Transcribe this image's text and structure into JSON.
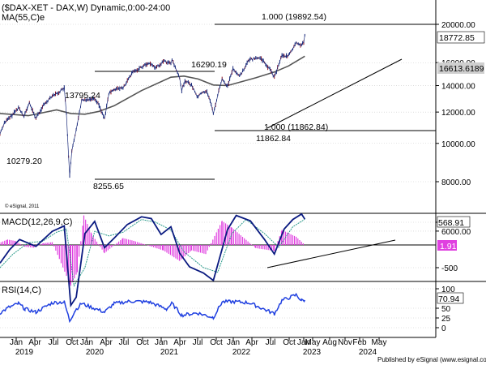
{
  "chart_data": [
    {
      "type": "line",
      "panel": "price",
      "title": "($DAX-XET - DAX,W) Dynamic,0:00-24:00",
      "indicator_label": "MA(55,C)e",
      "copyright": "© eSignal, 2011",
      "y_ticks": [
        "20000.00",
        "16000.00",
        "14000.00",
        "12000.00",
        "10000.00",
        "8000.00",
        "6000.00"
      ],
      "last_price_tag": "18772.85",
      "ma_tag": "16613.6189",
      "annotations": [
        "10279.20",
        "13795.24",
        "16290.19",
        "8255.65",
        "11862.84"
      ],
      "fib_labels": [
        "1.000 (19892.54)",
        "1.000 (11862.84)"
      ],
      "price_series": [
        [
          "2018-12-28",
          10559
        ],
        [
          "2019-01-25",
          11282
        ],
        [
          "2019-03-01",
          11602
        ],
        [
          "2019-04-26",
          12315
        ],
        [
          "2019-05-31",
          11726
        ],
        [
          "2019-07-05",
          12630
        ],
        [
          "2019-08-16",
          11560
        ],
        [
          "2019-09-27",
          12380
        ],
        [
          "2019-11-29",
          13236
        ],
        [
          "2019-12-27",
          13337
        ],
        [
          "2020-01-17",
          13526
        ],
        [
          "2020-02-14",
          13795
        ],
        [
          "2020-02-28",
          11890
        ],
        [
          "2020-03-13",
          9232
        ],
        [
          "2020-03-20",
          8255
        ],
        [
          "2020-04-03",
          9525
        ],
        [
          "2020-05-01",
          10861
        ],
        [
          "2020-06-05",
          12848
        ],
        [
          "2020-07-17",
          12919
        ],
        [
          "2020-08-28",
          13033
        ],
        [
          "2020-09-25",
          12469
        ],
        [
          "2020-10-30",
          11556
        ],
        [
          "2020-11-27",
          13335
        ],
        [
          "2020-12-31",
          13719
        ],
        [
          "2021-02-26",
          13786
        ],
        [
          "2021-04-30",
          15136
        ],
        [
          "2021-06-25",
          15607
        ],
        [
          "2021-08-13",
          15977
        ],
        [
          "2021-09-24",
          15532
        ],
        [
          "2021-11-19",
          16160
        ],
        [
          "2021-12-31",
          15884
        ],
        [
          "2022-01-07",
          16290
        ],
        [
          "2022-02-25",
          14567
        ],
        [
          "2022-03-11",
          13628
        ],
        [
          "2022-03-31",
          14414
        ],
        [
          "2022-05-13",
          14027
        ],
        [
          "2022-06-17",
          13126
        ],
        [
          "2022-07-29",
          13484
        ],
        [
          "2022-08-19",
          13544
        ],
        [
          "2022-09-23",
          12284
        ],
        [
          "2022-09-30",
          11862
        ],
        [
          "2022-10-28",
          13243
        ],
        [
          "2022-11-25",
          14541
        ],
        [
          "2022-12-30",
          13924
        ],
        [
          "2023-02-03",
          15476
        ],
        [
          "2023-03-17",
          14768
        ],
        [
          "2023-05-19",
          16275
        ],
        [
          "2023-07-28",
          16469
        ],
        [
          "2023-09-29",
          15386
        ],
        [
          "2023-10-27",
          14687
        ],
        [
          "2023-12-15",
          16751
        ],
        [
          "2024-01-19",
          16555
        ],
        [
          "2024-02-16",
          17117
        ],
        [
          "2024-03-15",
          17936
        ],
        [
          "2024-04-19",
          17737
        ],
        [
          "2024-05-03",
          18001
        ],
        [
          "2024-05-10",
          18772
        ]
      ],
      "ma_series": [
        [
          "2018-12-28",
          11900
        ],
        [
          "2019-06-28",
          11750
        ],
        [
          "2019-12-27",
          12150
        ],
        [
          "2020-03-27",
          11900
        ],
        [
          "2020-06-26",
          11850
        ],
        [
          "2020-09-25",
          12050
        ],
        [
          "2020-12-31",
          12450
        ],
        [
          "2021-06-25",
          13600
        ],
        [
          "2021-12-31",
          14700
        ],
        [
          "2022-03-25",
          14800
        ],
        [
          "2022-06-24",
          14550
        ],
        [
          "2022-09-30",
          14050
        ],
        [
          "2022-12-30",
          14000
        ],
        [
          "2023-06-30",
          14650
        ],
        [
          "2023-10-27",
          15150
        ],
        [
          "2024-01-26",
          15700
        ],
        [
          "2024-05-10",
          16613
        ]
      ]
    },
    {
      "type": "line",
      "panel": "macd",
      "indicator_label": "MACD(12,26,9,C)",
      "y_ticks": [
        "500",
        "-500"
      ],
      "macd_tag": "568.91",
      "hist_tag": "1.91",
      "macd_series": [
        [
          "2018-12-28",
          -400
        ],
        [
          "2019-03-01",
          -100
        ],
        [
          "2019-05-03",
          120
        ],
        [
          "2019-08-16",
          -30
        ],
        [
          "2019-11-29",
          300
        ],
        [
          "2020-02-14",
          420
        ],
        [
          "2020-03-27",
          -1330
        ],
        [
          "2020-05-01",
          -1150
        ],
        [
          "2020-06-26",
          250
        ],
        [
          "2020-08-28",
          520
        ],
        [
          "2020-10-30",
          -60
        ],
        [
          "2020-12-31",
          150
        ],
        [
          "2021-03-26",
          450
        ],
        [
          "2021-06-25",
          620
        ],
        [
          "2021-08-27",
          580
        ],
        [
          "2021-10-29",
          230
        ],
        [
          "2021-12-31",
          400
        ],
        [
          "2022-02-25",
          -180
        ],
        [
          "2022-04-29",
          -480
        ],
        [
          "2022-07-29",
          -620
        ],
        [
          "2022-09-30",
          -780
        ],
        [
          "2022-12-30",
          340
        ],
        [
          "2023-02-24",
          650
        ],
        [
          "2023-05-26",
          530
        ],
        [
          "2023-08-25",
          120
        ],
        [
          "2023-10-27",
          -200
        ],
        [
          "2023-12-29",
          350
        ],
        [
          "2024-02-23",
          560
        ],
        [
          "2024-04-19",
          680
        ],
        [
          "2024-05-10",
          568
        ]
      ],
      "signal_series": [
        [
          "2018-12-28",
          -500
        ],
        [
          "2019-03-22",
          -200
        ],
        [
          "2019-06-28",
          50
        ],
        [
          "2019-09-27",
          80
        ],
        [
          "2019-12-27",
          280
        ],
        [
          "2020-02-28",
          350
        ],
        [
          "2020-04-17",
          -900
        ],
        [
          "2020-06-26",
          -500
        ],
        [
          "2020-08-28",
          300
        ],
        [
          "2020-11-27",
          200
        ],
        [
          "2021-02-26",
          280
        ],
        [
          "2021-06-25",
          560
        ],
        [
          "2021-09-24",
          500
        ],
        [
          "2021-12-31",
          330
        ],
        [
          "2022-03-25",
          -150
        ],
        [
          "2022-07-29",
          -500
        ],
        [
          "2022-10-28",
          -600
        ],
        [
          "2023-01-27",
          250
        ],
        [
          "2023-04-28",
          560
        ],
        [
          "2023-08-25",
          250
        ],
        [
          "2023-11-24",
          -50
        ],
        [
          "2024-02-23",
          400
        ],
        [
          "2024-05-10",
          566
        ]
      ],
      "histogram": [
        [
          "2019-01-04",
          60
        ],
        [
          "2019-02-15",
          120
        ],
        [
          "2019-04-05",
          90
        ],
        [
          "2019-06-07",
          -40
        ],
        [
          "2019-08-02",
          -60
        ],
        [
          "2019-10-04",
          40
        ],
        [
          "2019-11-29",
          60
        ],
        [
          "2020-03-27",
          -900
        ],
        [
          "2020-05-08",
          -600
        ],
        [
          "2020-06-19",
          650
        ],
        [
          "2020-08-07",
          250
        ],
        [
          "2020-10-30",
          -180
        ],
        [
          "2021-02-26",
          150
        ],
        [
          "2021-05-07",
          90
        ],
        [
          "2021-11-12",
          -120
        ],
        [
          "2022-02-25",
          -350
        ],
        [
          "2022-05-13",
          -120
        ],
        [
          "2022-08-12",
          -200
        ],
        [
          "2022-11-25",
          530
        ],
        [
          "2023-01-27",
          380
        ],
        [
          "2023-06-30",
          -70
        ],
        [
          "2023-10-27",
          -130
        ],
        [
          "2023-12-15",
          330
        ],
        [
          "2024-03-15",
          180
        ],
        [
          "2024-05-10",
          2
        ]
      ]
    },
    {
      "type": "line",
      "panel": "rsi",
      "indicator_label": "RSI(14,C)",
      "y_ticks": [
        "100",
        "50",
        "25",
        "0"
      ],
      "rsi_tag": "70.94",
      "rsi_series": [
        [
          "2018-12-28",
          38
        ],
        [
          "2019-02-22",
          52
        ],
        [
          "2019-04-26",
          62
        ],
        [
          "2019-06-07",
          48
        ],
        [
          "2019-08-16",
          40
        ],
        [
          "2019-11-29",
          64
        ],
        [
          "2020-02-14",
          66
        ],
        [
          "2020-03-20",
          18
        ],
        [
          "2020-04-24",
          44
        ],
        [
          "2020-06-05",
          62
        ],
        [
          "2020-10-30",
          40
        ],
        [
          "2020-12-31",
          62
        ],
        [
          "2021-04-16",
          68
        ],
        [
          "2021-08-13",
          66
        ],
        [
          "2021-12-03",
          48
        ],
        [
          "2022-01-07",
          62
        ],
        [
          "2022-03-11",
          32
        ],
        [
          "2022-06-17",
          38
        ],
        [
          "2022-09-30",
          26
        ],
        [
          "2022-11-25",
          66
        ],
        [
          "2023-02-03",
          67
        ],
        [
          "2023-05-19",
          64
        ],
        [
          "2023-10-27",
          36
        ],
        [
          "2023-12-15",
          70
        ],
        [
          "2024-03-15",
          84
        ],
        [
          "2024-04-19",
          70
        ],
        [
          "2024-05-10",
          71
        ]
      ]
    }
  ],
  "x_months": [
    "Jan",
    "Apr",
    "Jul",
    "Oct",
    "Jan",
    "Apr",
    "Jul",
    "Oct",
    "Jan",
    "Apr",
    "Jul",
    "Oct",
    "Jan",
    "Apr",
    "Jul",
    "Oct",
    "Jan",
    "May",
    "Aug",
    "Nov",
    "Feb",
    "May"
  ],
  "x_years": [
    "2019",
    "2020",
    "2021",
    "2022",
    "2023",
    "2024"
  ],
  "footer": "Published by eSignal (www.esignal.com)"
}
